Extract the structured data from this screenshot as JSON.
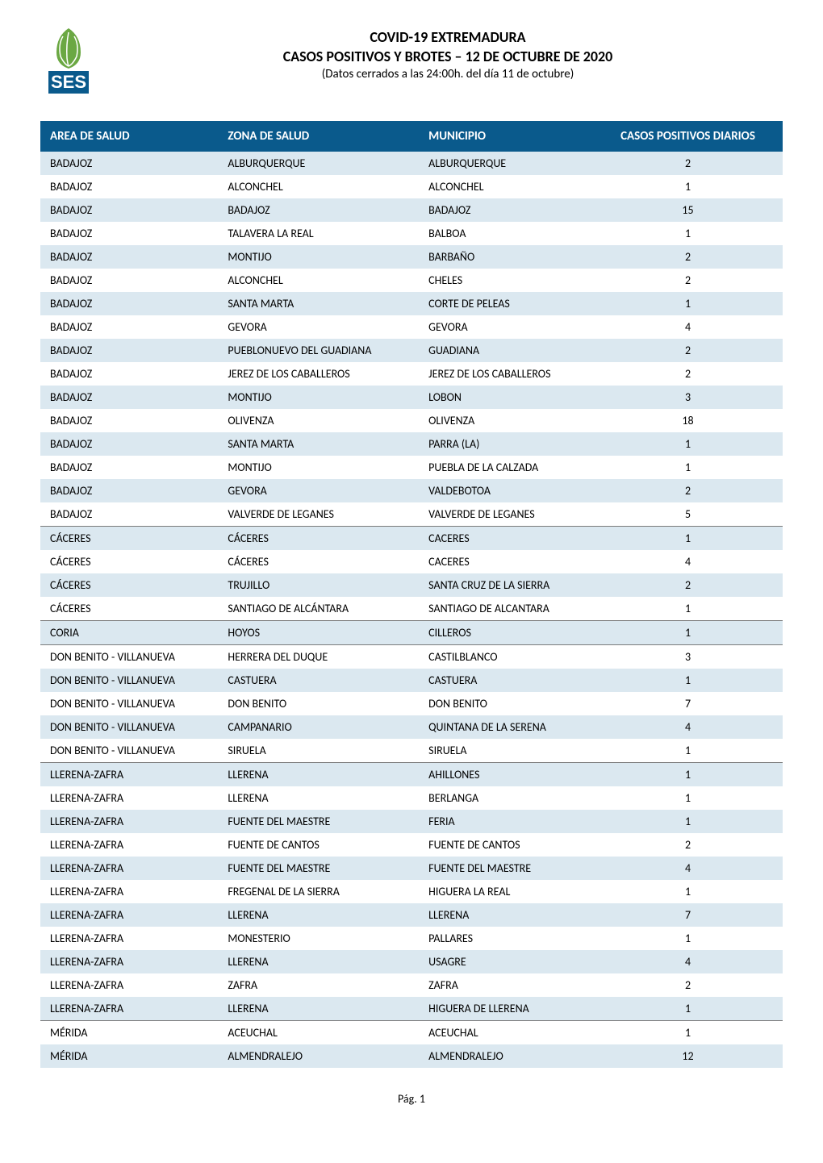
{
  "header": {
    "title_main": "COVID-19 EXTREMADURA",
    "title_sub": "CASOS POSITIVOS Y BROTES – 12 DE OCTUBRE DE 2020",
    "title_note": "(Datos cerrados a las 24:00h. del día 11 de octubre)"
  },
  "logo": {
    "leaf_color": "#6ba843",
    "text_color": "#0a5a8c",
    "text": "SES"
  },
  "table": {
    "header_bg": "#0a5a8c",
    "header_fg": "#ffffff",
    "row_even_bg": "#dbe8f0",
    "row_odd_bg": "#ffffff",
    "separator_color": "#7a7a7a",
    "columns": [
      "AREA DE SALUD",
      "ZONA DE SALUD",
      "MUNICIPIO",
      "CASOS POSITIVOS DIARIOS"
    ],
    "rows": [
      {
        "area": "BADAJOZ",
        "zona": "ALBURQUERQUE",
        "muni": "ALBURQUERQUE",
        "casos": "2",
        "sep": false
      },
      {
        "area": "BADAJOZ",
        "zona": "ALCONCHEL",
        "muni": "ALCONCHEL",
        "casos": "1",
        "sep": false
      },
      {
        "area": "BADAJOZ",
        "zona": "BADAJOZ",
        "muni": "BADAJOZ",
        "casos": "15",
        "sep": false
      },
      {
        "area": "BADAJOZ",
        "zona": "TALAVERA LA REAL",
        "muni": "BALBOA",
        "casos": "1",
        "sep": false
      },
      {
        "area": "BADAJOZ",
        "zona": "MONTIJO",
        "muni": "BARBAÑO",
        "casos": "2",
        "sep": false
      },
      {
        "area": "BADAJOZ",
        "zona": "ALCONCHEL",
        "muni": "CHELES",
        "casos": "2",
        "sep": false
      },
      {
        "area": "BADAJOZ",
        "zona": "SANTA MARTA",
        "muni": "CORTE DE PELEAS",
        "casos": "1",
        "sep": false
      },
      {
        "area": "BADAJOZ",
        "zona": "GEVORA",
        "muni": "GEVORA",
        "casos": "4",
        "sep": false
      },
      {
        "area": "BADAJOZ",
        "zona": "PUEBLONUEVO DEL GUADIANA",
        "muni": "GUADIANA",
        "casos": "2",
        "sep": false
      },
      {
        "area": "BADAJOZ",
        "zona": "JEREZ DE LOS CABALLEROS",
        "muni": "JEREZ DE LOS CABALLEROS",
        "casos": "2",
        "sep": false
      },
      {
        "area": "BADAJOZ",
        "zona": "MONTIJO",
        "muni": "LOBON",
        "casos": "3",
        "sep": false
      },
      {
        "area": "BADAJOZ",
        "zona": "OLIVENZA",
        "muni": "OLIVENZA",
        "casos": "18",
        "sep": false
      },
      {
        "area": "BADAJOZ",
        "zona": "SANTA MARTA",
        "muni": "PARRA (LA)",
        "casos": "1",
        "sep": false
      },
      {
        "area": "BADAJOZ",
        "zona": "MONTIJO",
        "muni": "PUEBLA DE LA CALZADA",
        "casos": "1",
        "sep": false
      },
      {
        "area": "BADAJOZ",
        "zona": "GEVORA",
        "muni": "VALDEBOTOA",
        "casos": "2",
        "sep": false
      },
      {
        "area": "BADAJOZ",
        "zona": "VALVERDE DE LEGANES",
        "muni": "VALVERDE DE LEGANES",
        "casos": "5",
        "sep": false
      },
      {
        "area": "CÁCERES",
        "zona": "CÁCERES",
        "muni": "CACERES",
        "casos": "1",
        "sep": true
      },
      {
        "area": "CÁCERES",
        "zona": "CÁCERES",
        "muni": "CACERES",
        "casos": "4",
        "sep": false
      },
      {
        "area": "CÁCERES",
        "zona": "TRUJILLO",
        "muni": "SANTA CRUZ DE LA SIERRA",
        "casos": "2",
        "sep": false
      },
      {
        "area": "CÁCERES",
        "zona": "SANTIAGO DE ALCÁNTARA",
        "muni": "SANTIAGO DE ALCANTARA",
        "casos": "1",
        "sep": false
      },
      {
        "area": "CORIA",
        "zona": "HOYOS",
        "muni": "CILLEROS",
        "casos": "1",
        "sep": true
      },
      {
        "area": "DON BENITO - VILLANUEVA",
        "zona": "HERRERA DEL DUQUE",
        "muni": "CASTILBLANCO",
        "casos": "3",
        "sep": true
      },
      {
        "area": "DON BENITO - VILLANUEVA",
        "zona": "CASTUERA",
        "muni": "CASTUERA",
        "casos": "1",
        "sep": false
      },
      {
        "area": "DON BENITO - VILLANUEVA",
        "zona": "DON BENITO",
        "muni": "DON BENITO",
        "casos": "7",
        "sep": false
      },
      {
        "area": "DON BENITO - VILLANUEVA",
        "zona": "CAMPANARIO",
        "muni": "QUINTANA DE LA SERENA",
        "casos": "4",
        "sep": false
      },
      {
        "area": "DON BENITO - VILLANUEVA",
        "zona": "SIRUELA",
        "muni": "SIRUELA",
        "casos": "1",
        "sep": false
      },
      {
        "area": "LLERENA-ZAFRA",
        "zona": "LLERENA",
        "muni": "AHILLONES",
        "casos": "1",
        "sep": true
      },
      {
        "area": "LLERENA-ZAFRA",
        "zona": "LLERENA",
        "muni": "BERLANGA",
        "casos": "1",
        "sep": false
      },
      {
        "area": "LLERENA-ZAFRA",
        "zona": "FUENTE DEL MAESTRE",
        "muni": "FERIA",
        "casos": "1",
        "sep": false
      },
      {
        "area": "LLERENA-ZAFRA",
        "zona": "FUENTE DE CANTOS",
        "muni": "FUENTE DE CANTOS",
        "casos": "2",
        "sep": false
      },
      {
        "area": "LLERENA-ZAFRA",
        "zona": "FUENTE DEL MAESTRE",
        "muni": "FUENTE DEL MAESTRE",
        "casos": "4",
        "sep": false
      },
      {
        "area": "LLERENA-ZAFRA",
        "zona": "FREGENAL DE LA SIERRA",
        "muni": "HIGUERA LA REAL",
        "casos": "1",
        "sep": false
      },
      {
        "area": "LLERENA-ZAFRA",
        "zona": "LLERENA",
        "muni": "LLERENA",
        "casos": "7",
        "sep": false
      },
      {
        "area": "LLERENA-ZAFRA",
        "zona": "MONESTERIO",
        "muni": "PALLARES",
        "casos": "1",
        "sep": false
      },
      {
        "area": "LLERENA-ZAFRA",
        "zona": "LLERENA",
        "muni": "USAGRE",
        "casos": "4",
        "sep": false
      },
      {
        "area": "LLERENA-ZAFRA",
        "zona": "ZAFRA",
        "muni": "ZAFRA",
        "casos": "2",
        "sep": false
      },
      {
        "area": "LLERENA-ZAFRA",
        "zona": "LLERENA",
        "muni": "HIGUERA DE LLERENA",
        "casos": "1",
        "sep": false
      },
      {
        "area": "MÉRIDA",
        "zona": "ACEUCHAL",
        "muni": "ACEUCHAL",
        "casos": "1",
        "sep": true
      },
      {
        "area": "MÉRIDA",
        "zona": "ALMENDRALEJO",
        "muni": "ALMENDRALEJO",
        "casos": "12",
        "sep": false
      }
    ]
  },
  "footer": {
    "page_label": "Pág. 1"
  }
}
